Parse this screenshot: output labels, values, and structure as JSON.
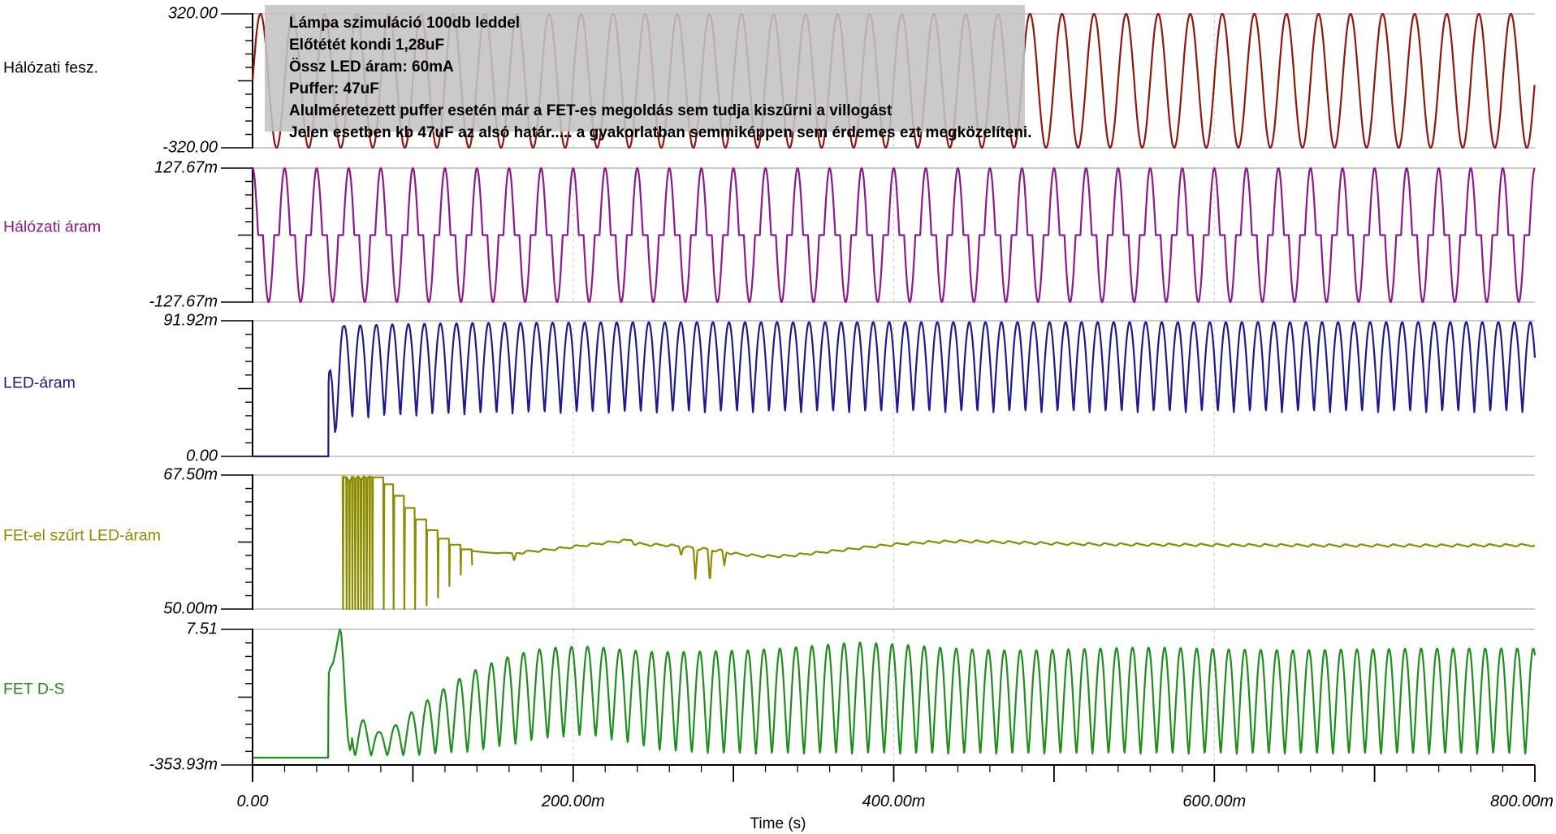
{
  "annotation": {
    "bg_rgba": "rgba(195,195,195,0.88)",
    "lines": [
      "Lámpa szimuláció 100db leddel",
      "Előtétét kondi 1,28uF",
      "Össz LED áram: 60mA",
      "Puffer: 47uF",
      "Alulméretezett puffer esetén már a FET-es megoldás sem tudja kiszűrni a villogást",
      "Jelen esetben kb 47uF az alsó határ..... a gyakorlatban semmiképpen sem érdemes ezt megközelíteni."
    ]
  },
  "xaxis": {
    "title": "Time (s)",
    "tick_labels": [
      "0.00",
      "200.00m",
      "400.00m",
      "600.00m",
      "800.00m"
    ],
    "tick_values_ms": [
      0,
      200,
      400,
      600,
      800
    ],
    "minor_step_ms": 20,
    "major_step_ms": 100,
    "range_ms": [
      0,
      800
    ]
  },
  "chart_data": {
    "type": "line",
    "x_unit": "ms",
    "xlabel": "Time (s)",
    "grid": "panel borders solid, vertical dashed gridlines at 200m/400m/600m",
    "panels": [
      {
        "name": "mains-voltage",
        "label": "Hálózati fesz.",
        "label_color": "#000000",
        "color": "#8f1710",
        "y_top_label": "320.00",
        "y_bottom_label": "-320.00",
        "ylim": [
          -320,
          320
        ],
        "waveform": {
          "kind": "sine",
          "amplitude": 320,
          "period_ms": 20
        }
      },
      {
        "name": "mains-current",
        "label": "Hálózati áram",
        "label_color": "#8c1a8c",
        "color": "#8c1a8c",
        "y_top_label": "127.67m",
        "y_bottom_label": "-127.67m",
        "ylim": [
          -127.67,
          127.67
        ],
        "waveform": {
          "kind": "gapped_sine",
          "amplitude": 127.67,
          "period_ms": 20,
          "conduction_ms": 7
        }
      },
      {
        "name": "led-current",
        "label": "LED-áram",
        "label_color": "#1c1c8c",
        "color": "#1c1c8c",
        "y_top_label": "91.92m",
        "y_bottom_label": "0.00",
        "ylim": [
          0,
          91.92
        ],
        "waveform": {
          "kind": "startup_humps",
          "flat": [
            [
              0,
              0
            ],
            [
              47.25,
              0
            ]
          ],
          "start": [
            [
              47.4,
              50
            ],
            [
              47.8,
              57
            ],
            [
              48.6,
              58.5
            ],
            [
              49.6,
              50
            ],
            [
              50.6,
              30
            ],
            [
              51.4,
              16.5
            ],
            [
              52.2,
              20
            ],
            [
              53.2,
              38
            ],
            [
              54.2,
              60
            ],
            [
              55.2,
              78
            ],
            [
              56.2,
              87.5
            ]
          ],
          "regular_from": 57.2,
          "phase_ms": 52.2,
          "period_ms": 10,
          "power": 1.12,
          "peak": 91,
          "peak_dip": 2.5,
          "peak_tau": 60,
          "trough": 30,
          "trough_dip": 4.5,
          "trough_tau": 70
        }
      },
      {
        "name": "fet-filtered-led-current",
        "label": "FEt-el szűrt LED-áram",
        "label_color": "#8c8c00",
        "color": "#8c8c00",
        "y_top_label": "67.50m",
        "y_bottom_label": "50.00m",
        "ylim": [
          50,
          67.5
        ],
        "waveform": {
          "kind": "spikes_wave",
          "spikes": [
            [
              56.2,
              67.3,
              49.8
            ],
            [
              58.4,
              67.2,
              49.8
            ],
            [
              60.2,
              66.6,
              49.8
            ],
            [
              62.0,
              67.3,
              49.8
            ],
            [
              63.8,
              67.0,
              49.8
            ],
            [
              65.6,
              67.3,
              49.8
            ],
            [
              67.4,
              66.9,
              49.8
            ],
            [
              69.2,
              67.3,
              49.8
            ],
            [
              71.0,
              67.1,
              49.8
            ],
            [
              72.8,
              67.3,
              49.8
            ],
            [
              74.6,
              67.2,
              49.8
            ]
          ],
          "plateaus": [
            [
              76.0,
              81.5,
              67.2,
              49.8
            ],
            [
              82.2,
              87.7,
              66.3,
              49.8
            ],
            [
              88.4,
              94.4,
              64.8,
              49.8
            ],
            [
              95.1,
              101.1,
              63.2,
              49.8
            ],
            [
              101.8,
              108.3,
              61.7,
              50.5
            ],
            [
              108.9,
              115.4,
              60.3,
              51.5
            ],
            [
              116.0,
              122.5,
              59.2,
              53.0
            ],
            [
              123.1,
              129.6,
              58.4,
              54.5
            ],
            [
              130.2,
              136.7,
              57.8,
              55.8
            ]
          ],
          "tail": [
            [
              136.7,
              57.6
            ],
            [
              145,
              57.4
            ],
            [
              152,
              57.3
            ],
            [
              158,
              57.35
            ],
            [
              162,
              57.3
            ],
            [
              163.2,
              56.3
            ],
            [
              164.4,
              57.3
            ],
            [
              172,
              57.5
            ],
            [
              182,
              57.7
            ],
            [
              195,
              58.0
            ],
            [
              208,
              58.35
            ],
            [
              222,
              58.7
            ],
            [
              233,
              58.95
            ],
            [
              236.5,
              59.05
            ],
            [
              238,
              58.55
            ],
            [
              248,
              58.4
            ],
            [
              258,
              58.35
            ],
            [
              266,
              58.2
            ],
            [
              267.3,
              57.1
            ],
            [
              268.6,
              58.1
            ],
            [
              275,
              58.0
            ],
            [
              276.3,
              54.0
            ],
            [
              277.6,
              57.9
            ],
            [
              284,
              57.8
            ],
            [
              285.3,
              53.4
            ],
            [
              286.6,
              57.7
            ],
            [
              293,
              57.6
            ],
            [
              294.3,
              55.7
            ],
            [
              295.6,
              57.4
            ],
            [
              302,
              57.2
            ],
            [
              312,
              57.0
            ],
            [
              322,
              56.9
            ],
            [
              334,
              56.95
            ],
            [
              350,
              57.3
            ],
            [
              368,
              57.7
            ],
            [
              386,
              58.15
            ],
            [
              404,
              58.5
            ],
            [
              422,
              58.75
            ],
            [
              440,
              58.85
            ],
            [
              458,
              58.8
            ],
            [
              476,
              58.7
            ],
            [
              500,
              58.55
            ],
            [
              530,
              58.45
            ],
            [
              570,
              58.4
            ],
            [
              620,
              58.35
            ],
            [
              680,
              58.3
            ],
            [
              740,
              58.3
            ],
            [
              800,
              58.35
            ]
          ],
          "ripple": {
            "start_ms": 166,
            "a1": 0.13,
            "a2": 0.05,
            "period_ms": 10
          }
        }
      },
      {
        "name": "fet-drain-source",
        "label": "FET D-S",
        "label_color": "#1e8f1e",
        "color": "#1e8f1e",
        "y_top_label": "7.51",
        "y_bottom_label": "-353.93m",
        "ylim": [
          -0.354,
          7.51
        ],
        "waveform": {
          "kind": "envelope_humps",
          "flat": [
            [
              0,
              0.07
            ],
            [
              46.9,
              0.07
            ]
          ],
          "spike": [
            [
              47.15,
              0.07
            ],
            [
              47.3,
              3.2
            ],
            [
              47.6,
              5.0
            ],
            [
              48.6,
              5.3
            ],
            [
              50.2,
              5.55
            ],
            [
              52.0,
              6.3
            ],
            [
              53.5,
              7.1
            ],
            [
              54.4,
              7.51
            ],
            [
              55.3,
              7.3
            ],
            [
              56.5,
              5.8
            ],
            [
              58.0,
              3.2
            ],
            [
              59.5,
              1.2
            ],
            [
              60.8,
              0.5
            ],
            [
              61.8,
              0.85
            ]
          ],
          "hump_start": 62,
          "phase_ms": 64,
          "period_ms": 10,
          "power": 1.35,
          "peak_env": [
            [
              69,
              2.25
            ],
            [
              79,
              1.55
            ],
            [
              89,
              1.95
            ],
            [
              99,
              2.7
            ],
            [
              109,
              3.4
            ],
            [
              119,
              4.05
            ],
            [
              129,
              4.65
            ],
            [
              139,
              5.15
            ],
            [
              149,
              5.55
            ],
            [
              159,
              5.9
            ],
            [
              169,
              6.15
            ],
            [
              179,
              6.35
            ],
            [
              189,
              6.45
            ],
            [
              199,
              6.5
            ],
            [
              209,
              6.5
            ],
            [
              219,
              6.45
            ],
            [
              229,
              6.35
            ],
            [
              249,
              6.2
            ],
            [
              269,
              6.2
            ],
            [
              289,
              6.25
            ],
            [
              309,
              6.3
            ],
            [
              329,
              6.4
            ],
            [
              349,
              6.55
            ],
            [
              369,
              6.7
            ],
            [
              379,
              6.75
            ],
            [
              389,
              6.7
            ],
            [
              409,
              6.6
            ],
            [
              429,
              6.45
            ],
            [
              449,
              6.35
            ],
            [
              469,
              6.3
            ],
            [
              489,
              6.3
            ],
            [
              509,
              6.35
            ],
            [
              529,
              6.4
            ],
            [
              549,
              6.45
            ],
            [
              569,
              6.45
            ],
            [
              589,
              6.4
            ],
            [
              609,
              6.35
            ],
            [
              649,
              6.3
            ],
            [
              689,
              6.35
            ],
            [
              729,
              6.4
            ],
            [
              769,
              6.4
            ],
            [
              800,
              6.4
            ]
          ],
          "trough_env": [
            [
              62,
              0.2
            ],
            [
              100,
              0.2
            ],
            [
              140,
              0.45
            ],
            [
              160,
              0.8
            ],
            [
              180,
              1.15
            ],
            [
              200,
              1.35
            ],
            [
              215,
              1.3
            ],
            [
              235,
              0.9
            ],
            [
              255,
              0.5
            ],
            [
              275,
              0.35
            ],
            [
              300,
              0.3
            ],
            [
              800,
              0.3
            ]
          ]
        }
      }
    ]
  }
}
